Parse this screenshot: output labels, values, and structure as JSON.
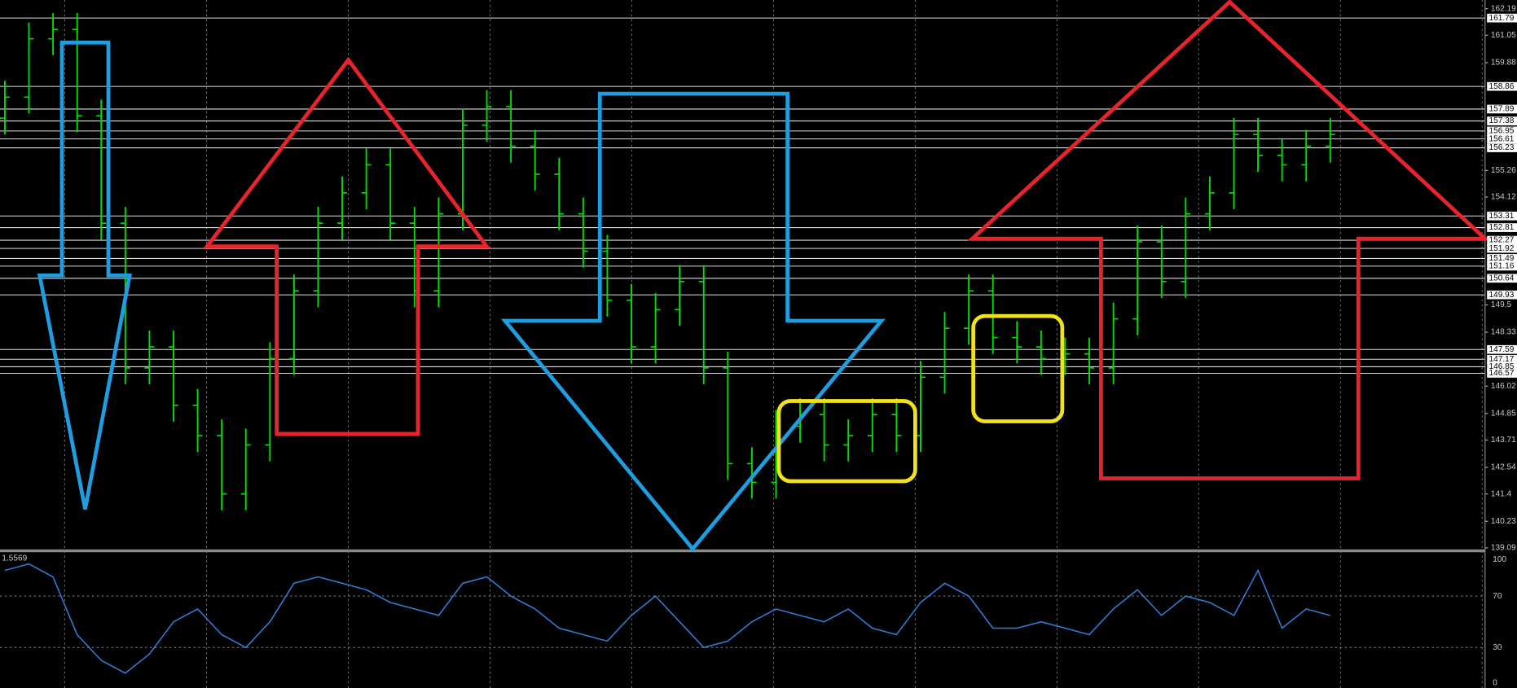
{
  "chart_data": {
    "type": "ohlc",
    "color": "#00e000",
    "open": [
      157.5,
      158.4,
      160.9,
      161.3,
      157.6,
      153.0,
      146.8,
      147.7,
      145.2,
      143.9,
      141.4,
      143.5,
      147.2,
      150.1,
      153.0,
      154.3,
      155.5,
      153.0,
      150.1,
      153.4,
      157.2,
      158.0,
      156.3,
      155.1,
      153.4,
      151.8,
      149.7,
      147.7,
      149.3,
      150.5,
      146.8,
      142.7,
      141.9,
      144.3,
      144.8,
      143.5,
      143.9,
      144.8,
      143.9,
      146.4,
      148.5,
      150.1,
      148.1,
      147.7,
      147.2,
      147.4,
      146.8,
      148.9,
      152.2,
      150.5,
      153.4,
      154.3,
      156.8,
      155.9,
      155.5,
      156.3
    ],
    "high": [
      159.1,
      161.6,
      162.0,
      162.0,
      158.3,
      153.7,
      148.4,
      148.4,
      145.9,
      144.6,
      144.2,
      147.9,
      150.8,
      153.7,
      155.0,
      156.2,
      156.2,
      153.7,
      154.1,
      157.9,
      158.7,
      158.7,
      157.0,
      155.8,
      154.1,
      152.5,
      150.4,
      150.0,
      151.2,
      151.2,
      147.5,
      143.4,
      145.0,
      145.5,
      145.5,
      144.6,
      145.5,
      145.5,
      147.1,
      149.2,
      150.8,
      150.8,
      148.8,
      148.4,
      148.1,
      148.1,
      149.6,
      152.9,
      152.9,
      154.1,
      155.0,
      157.5,
      157.5,
      156.6,
      157.0,
      157.5
    ],
    "low": [
      156.8,
      157.7,
      160.2,
      156.9,
      152.3,
      146.1,
      146.1,
      144.5,
      143.2,
      140.7,
      140.7,
      142.8,
      146.5,
      149.4,
      152.3,
      153.6,
      152.3,
      149.4,
      149.4,
      152.7,
      156.5,
      155.6,
      154.4,
      152.7,
      151.1,
      149.0,
      147.0,
      147.0,
      148.6,
      146.1,
      142.0,
      141.2,
      141.2,
      143.6,
      142.8,
      142.8,
      143.2,
      143.2,
      143.2,
      145.7,
      147.8,
      147.4,
      147.0,
      146.5,
      146.5,
      146.1,
      146.1,
      148.2,
      149.8,
      149.8,
      152.7,
      153.6,
      155.2,
      154.8,
      154.8,
      155.6
    ],
    "close": [
      158.4,
      160.9,
      161.3,
      157.6,
      153.0,
      146.8,
      147.7,
      145.2,
      143.9,
      141.4,
      143.5,
      147.2,
      150.1,
      153.0,
      154.3,
      155.5,
      153.0,
      150.1,
      153.4,
      157.2,
      158.0,
      156.3,
      155.1,
      153.4,
      151.8,
      149.7,
      147.7,
      149.3,
      150.5,
      146.8,
      142.7,
      141.9,
      144.3,
      144.8,
      143.5,
      143.9,
      144.8,
      143.9,
      146.4,
      148.5,
      150.1,
      148.1,
      147.7,
      147.2,
      147.4,
      146.8,
      148.9,
      152.2,
      150.5,
      153.4,
      154.3,
      156.8,
      155.9,
      155.5,
      156.3,
      156.8
    ],
    "ylim": [
      139.09,
      162.19
    ],
    "yticks": [
      139.09,
      140.23,
      141.4,
      142.54,
      143.71,
      144.85,
      146.02,
      148.33,
      149.5,
      154.12,
      155.26,
      159.88,
      161.05,
      162.19
    ],
    "levels": [
      161.79,
      158.86,
      157.89,
      157.38,
      156.95,
      156.61,
      156.23,
      153.31,
      152.81,
      152.27,
      151.92,
      151.49,
      151.16,
      150.64,
      149.93,
      147.59,
      147.17,
      146.85,
      146.57
    ],
    "grid": true,
    "oscillator": {
      "type": "line",
      "label": "1.5569",
      "color": "#2f7fd8",
      "values": [
        90,
        95,
        85,
        40,
        20,
        10,
        25,
        50,
        60,
        40,
        30,
        50,
        80,
        85,
        80,
        75,
        65,
        60,
        55,
        80,
        85,
        70,
        60,
        45,
        40,
        35,
        55,
        70,
        50,
        30,
        35,
        50,
        60,
        55,
        50,
        60,
        45,
        40,
        65,
        80,
        70,
        45,
        45,
        50,
        45,
        40,
        60,
        75,
        55,
        70,
        65,
        55,
        90,
        45,
        60,
        55
      ],
      "ylim": [
        0,
        100
      ],
      "yticks": [
        0,
        30,
        70,
        100
      ]
    }
  }
}
